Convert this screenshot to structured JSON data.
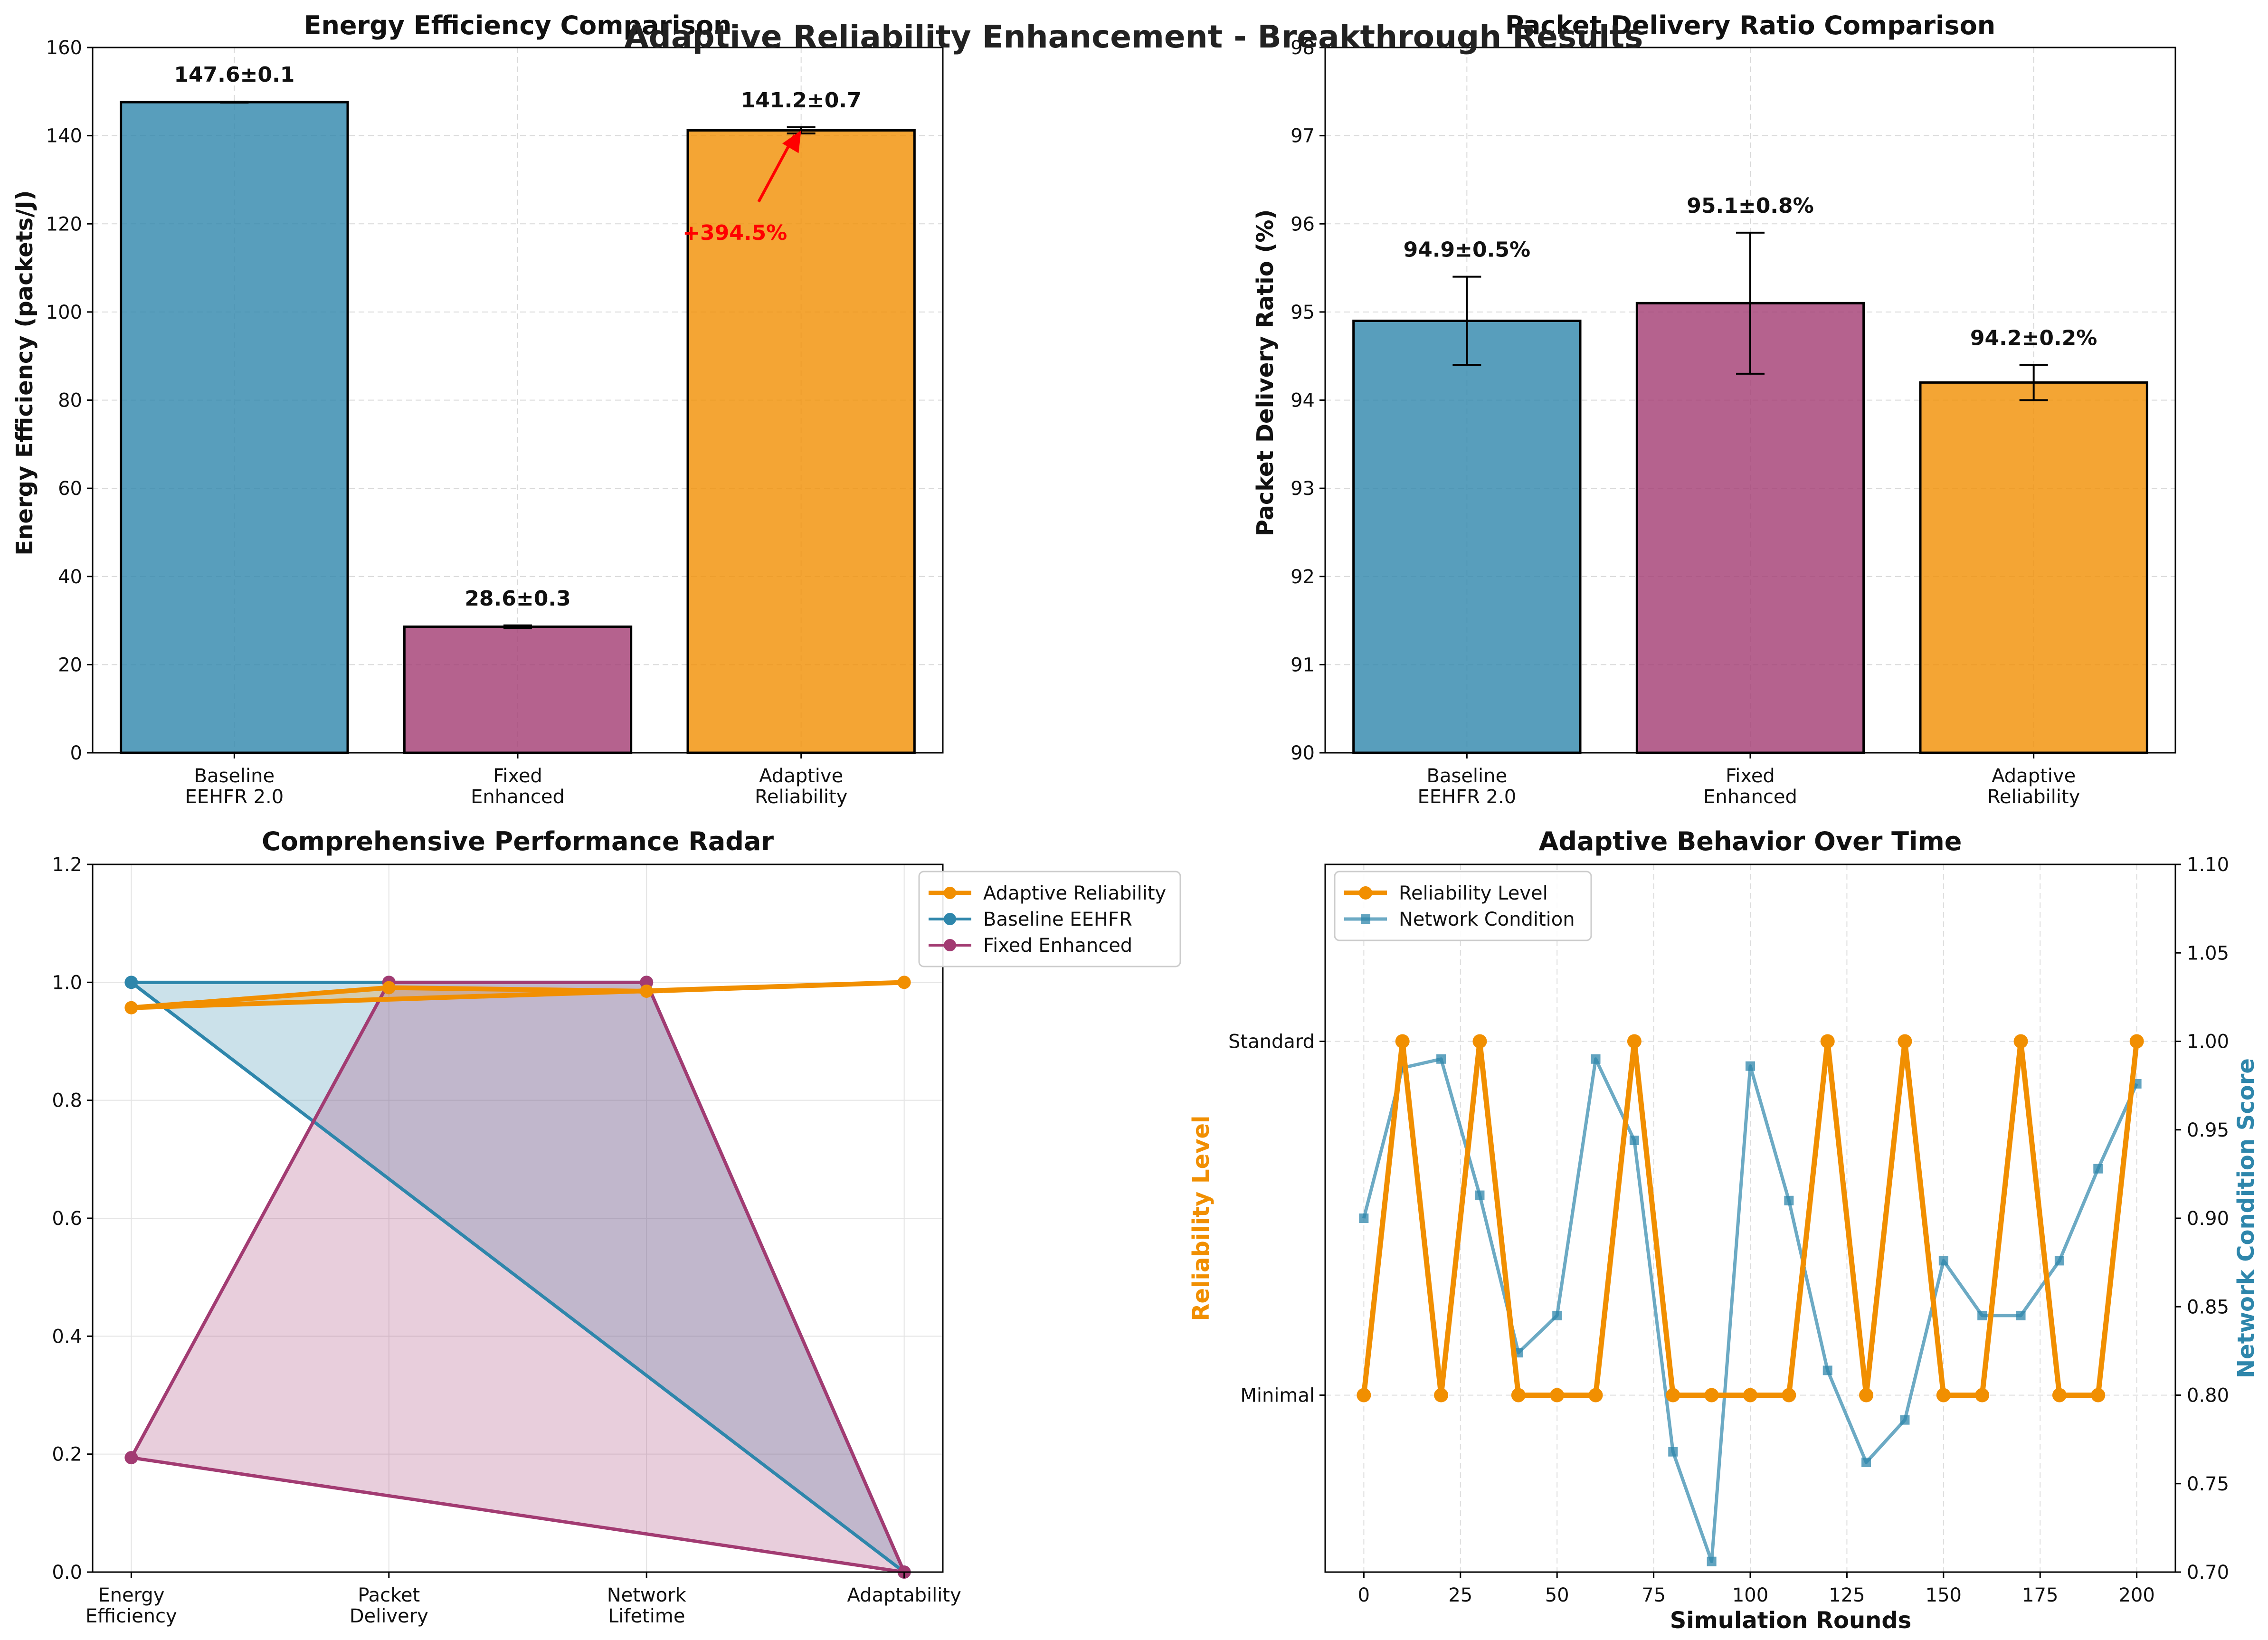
{
  "suptitle": "Adaptive Reliability Enhancement - Breakthrough Results",
  "colors": {
    "baseline": "#2E86AB",
    "fixed": "#A23B72",
    "adaptive": "#F18F01",
    "annotation": "#FF0000"
  },
  "chart_data": [
    {
      "type": "bar",
      "title": "Energy Efficiency Comparison",
      "categories": [
        "Baseline\nEEHFR 2.0",
        "Fixed\nEnhanced",
        "Adaptive\nReliability"
      ],
      "values": [
        147.6,
        28.6,
        141.2
      ],
      "errors": [
        0.1,
        0.3,
        0.7
      ],
      "value_labels": [
        "147.6±0.1",
        "28.6±0.3",
        "141.2±0.7"
      ],
      "ylabel": "Energy Efficiency (packets/J)",
      "ylim": [
        0,
        160
      ],
      "yticks": [
        0,
        20,
        40,
        60,
        80,
        100,
        120,
        140,
        160
      ],
      "grid": true,
      "annotation": {
        "text": "+394.5%",
        "from": [
          1.85,
          125
        ],
        "to": [
          2.0,
          141.2
        ]
      }
    },
    {
      "type": "bar",
      "title": "Packet Delivery Ratio Comparison",
      "categories": [
        "Baseline\nEEHFR 2.0",
        "Fixed\nEnhanced",
        "Adaptive\nReliability"
      ],
      "values": [
        94.9,
        95.1,
        94.2
      ],
      "errors": [
        0.5,
        0.8,
        0.2
      ],
      "value_labels": [
        "94.9±0.5%",
        "95.1±0.8%",
        "94.2±0.2%"
      ],
      "ylabel": "Packet Delivery Ratio (%)",
      "ylim": [
        90,
        98
      ],
      "yticks": [
        90,
        91,
        92,
        93,
        94,
        95,
        96,
        97,
        98
      ],
      "grid": true
    },
    {
      "type": "line",
      "title": "Comprehensive Performance Radar",
      "categories": [
        "Energy\nEfficiency",
        "Packet\nDelivery",
        "Network\nLifetime",
        "Adaptability"
      ],
      "ylim": [
        0,
        1.2
      ],
      "yticks": [
        0.0,
        0.2,
        0.4,
        0.6,
        0.8,
        1.0,
        1.2
      ],
      "grid": true,
      "legend": "top-right",
      "series": [
        {
          "name": "Adaptive Reliability",
          "values": [
            0.957,
            0.991,
            0.985,
            1.0
          ],
          "color": "#F18F01"
        },
        {
          "name": "Baseline EEHFR",
          "values": [
            1.0,
            1.0,
            1.0,
            0.0
          ],
          "color": "#2E86AB"
        },
        {
          "name": "Fixed Enhanced",
          "values": [
            0.194,
            1.0,
            1.0,
            0.0
          ],
          "color": "#A23B72"
        }
      ]
    },
    {
      "type": "line",
      "title": "Adaptive Behavior Over Time",
      "xlabel": "Simulation Rounds",
      "ylabel_left": "Reliability Level",
      "ylabel_right": "Network Condition Score",
      "xlim": [
        -10,
        210
      ],
      "xticks": [
        0,
        25,
        50,
        75,
        100,
        125,
        150,
        175,
        200
      ],
      "left_ylim": [
        0.5,
        2.5
      ],
      "left_ticks": [
        {
          "value": 1,
          "label": "Minimal"
        },
        {
          "value": 2,
          "label": "Standard"
        }
      ],
      "right_ylim": [
        0.7,
        1.1
      ],
      "right_ticks": [
        "0.70",
        "0.75",
        "0.80",
        "0.85",
        "0.90",
        "0.95",
        "1.00",
        "1.05",
        "1.10"
      ],
      "grid": true,
      "legend": "top-left",
      "x": [
        0,
        10,
        20,
        30,
        40,
        50,
        60,
        70,
        80,
        90,
        100,
        110,
        120,
        130,
        140,
        150,
        160,
        170,
        180,
        190,
        200
      ],
      "series": [
        {
          "name": "Reliability Level",
          "axis": "left",
          "color": "#F18F01",
          "values": [
            1,
            2,
            1,
            2,
            1,
            1,
            1,
            2,
            1,
            1,
            1,
            1,
            2,
            1,
            2,
            1,
            1,
            2,
            1,
            1,
            2
          ]
        },
        {
          "name": "Network Condition",
          "axis": "right",
          "color": "#2E86AB",
          "values": [
            0.9,
            0.985,
            0.99,
            0.913,
            0.824,
            0.845,
            0.99,
            0.944,
            0.768,
            0.706,
            0.986,
            0.91,
            0.814,
            0.762,
            0.786,
            0.876,
            0.845,
            0.845,
            0.876,
            0.928,
            0.976
          ]
        }
      ]
    }
  ]
}
